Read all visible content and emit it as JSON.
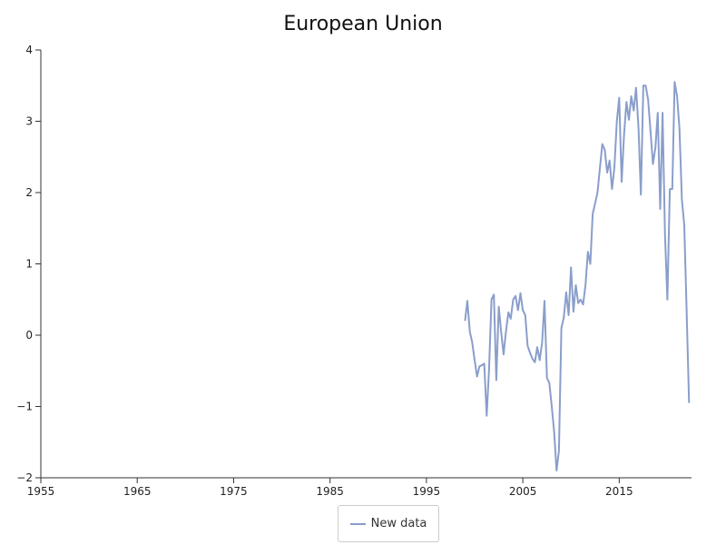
{
  "chart_data": {
    "type": "line",
    "title": "European Union",
    "xlabel": "",
    "ylabel": "",
    "xlim": [
      1955,
      2022.5
    ],
    "ylim": [
      -2,
      4
    ],
    "x_ticks": [
      1955,
      1965,
      1975,
      1985,
      1995,
      2005,
      2015
    ],
    "y_ticks": [
      -2,
      -1,
      0,
      1,
      2,
      3,
      4
    ],
    "grid": false,
    "legend_position": "bottom-center",
    "series": [
      {
        "name": "New data",
        "color": "#8a9ecb",
        "points": [
          [
            1999.0,
            0.2
          ],
          [
            1999.25,
            0.48
          ],
          [
            1999.5,
            0.05
          ],
          [
            1999.75,
            -0.1
          ],
          [
            2000.0,
            -0.35
          ],
          [
            2000.25,
            -0.58
          ],
          [
            2000.5,
            -0.44
          ],
          [
            2000.75,
            -0.42
          ],
          [
            2001.0,
            -0.4
          ],
          [
            2001.25,
            -1.13
          ],
          [
            2001.5,
            -0.48
          ],
          [
            2001.75,
            0.5
          ],
          [
            2002.0,
            0.57
          ],
          [
            2002.25,
            -0.63
          ],
          [
            2002.5,
            0.4
          ],
          [
            2002.75,
            0.05
          ],
          [
            2003.0,
            -0.27
          ],
          [
            2003.25,
            0.05
          ],
          [
            2003.5,
            0.32
          ],
          [
            2003.75,
            0.23
          ],
          [
            2004.0,
            0.5
          ],
          [
            2004.25,
            0.55
          ],
          [
            2004.5,
            0.35
          ],
          [
            2004.75,
            0.59
          ],
          [
            2005.0,
            0.35
          ],
          [
            2005.25,
            0.28
          ],
          [
            2005.5,
            -0.15
          ],
          [
            2005.75,
            -0.25
          ],
          [
            2006.0,
            -0.33
          ],
          [
            2006.25,
            -0.38
          ],
          [
            2006.5,
            -0.17
          ],
          [
            2006.75,
            -0.35
          ],
          [
            2007.0,
            -0.1
          ],
          [
            2007.25,
            0.48
          ],
          [
            2007.5,
            -0.6
          ],
          [
            2007.75,
            -0.67
          ],
          [
            2008.0,
            -1.0
          ],
          [
            2008.25,
            -1.35
          ],
          [
            2008.5,
            -1.9
          ],
          [
            2008.75,
            -1.62
          ],
          [
            2009.0,
            0.1
          ],
          [
            2009.25,
            0.25
          ],
          [
            2009.5,
            0.6
          ],
          [
            2009.75,
            0.28
          ],
          [
            2010.0,
            0.95
          ],
          [
            2010.25,
            0.33
          ],
          [
            2010.5,
            0.7
          ],
          [
            2010.75,
            0.45
          ],
          [
            2011.0,
            0.5
          ],
          [
            2011.25,
            0.43
          ],
          [
            2011.5,
            0.7
          ],
          [
            2011.75,
            1.17
          ],
          [
            2012.0,
            1.0
          ],
          [
            2012.25,
            1.7
          ],
          [
            2012.5,
            1.85
          ],
          [
            2012.75,
            2.0
          ],
          [
            2013.0,
            2.35
          ],
          [
            2013.25,
            2.68
          ],
          [
            2013.5,
            2.6
          ],
          [
            2013.75,
            2.28
          ],
          [
            2014.0,
            2.45
          ],
          [
            2014.25,
            2.05
          ],
          [
            2014.5,
            2.35
          ],
          [
            2014.75,
            3.0
          ],
          [
            2015.0,
            3.33
          ],
          [
            2015.25,
            2.15
          ],
          [
            2015.5,
            2.8
          ],
          [
            2015.75,
            3.27
          ],
          [
            2016.0,
            3.02
          ],
          [
            2016.25,
            3.35
          ],
          [
            2016.5,
            3.15
          ],
          [
            2016.75,
            3.47
          ],
          [
            2017.0,
            2.9
          ],
          [
            2017.25,
            1.97
          ],
          [
            2017.5,
            3.5
          ],
          [
            2017.75,
            3.5
          ],
          [
            2018.0,
            3.3
          ],
          [
            2018.25,
            2.85
          ],
          [
            2018.5,
            2.4
          ],
          [
            2018.75,
            2.63
          ],
          [
            2019.0,
            3.12
          ],
          [
            2019.25,
            1.77
          ],
          [
            2019.5,
            3.12
          ],
          [
            2019.75,
            1.4
          ],
          [
            2020.0,
            0.5
          ],
          [
            2020.25,
            2.05
          ],
          [
            2020.5,
            2.05
          ],
          [
            2020.75,
            3.55
          ],
          [
            2021.0,
            3.35
          ],
          [
            2021.25,
            2.9
          ],
          [
            2021.5,
            1.9
          ],
          [
            2021.75,
            1.55
          ],
          [
            2022.0,
            0.3
          ],
          [
            2022.25,
            -0.95
          ]
        ]
      }
    ]
  }
}
